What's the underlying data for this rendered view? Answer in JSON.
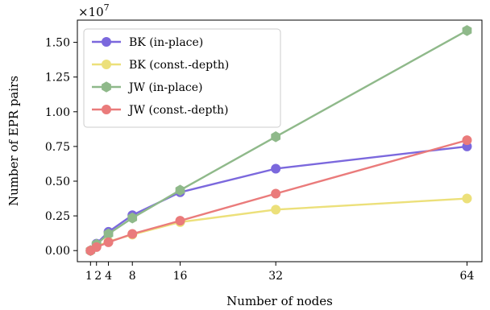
{
  "chart_data": {
    "type": "line",
    "title": "",
    "xlabel": "Number of nodes",
    "ylabel": "Number of EPR pairs",
    "y_multiplier_label": "×10",
    "y_multiplier_exp": "7",
    "xlim": [
      -1.2,
      66.5
    ],
    "ylim": [
      -0.08,
      1.66
    ],
    "x_ticks": [
      1,
      2,
      4,
      8,
      16,
      32,
      64
    ],
    "x_tick_labels": [
      "1",
      "2",
      "4",
      "8",
      "16",
      "32",
      "64"
    ],
    "y_ticks": [
      0.0,
      0.25,
      0.5,
      0.75,
      1.0,
      1.25,
      1.5
    ],
    "y_tick_labels": [
      "0.00",
      "0.25",
      "0.50",
      "0.75",
      "1.00",
      "1.25",
      "1.50"
    ],
    "grid": false,
    "legend_position": "top-left",
    "x": [
      1,
      2,
      4,
      8,
      16,
      32,
      64
    ],
    "series": [
      {
        "name": "BK (in-place)",
        "color": "#7b68dd",
        "marker": "circle",
        "values": [
          0.0,
          0.05,
          0.135,
          0.255,
          0.42,
          0.59,
          0.75
        ]
      },
      {
        "name": "BK (const.-depth)",
        "color": "#ece07a",
        "marker": "circle",
        "values": [
          0.0,
          0.03,
          0.065,
          0.115,
          0.205,
          0.295,
          0.375
        ]
      },
      {
        "name": "JW (in-place)",
        "color": "#8fb98a",
        "marker": "hexagon",
        "values": [
          0.0,
          0.045,
          0.12,
          0.235,
          0.435,
          0.82,
          1.585
        ]
      },
      {
        "name": "JW (const.-depth)",
        "color": "#ea7b7b",
        "marker": "circle",
        "values": [
          0.0,
          0.025,
          0.06,
          0.12,
          0.215,
          0.41,
          0.795
        ]
      }
    ]
  }
}
